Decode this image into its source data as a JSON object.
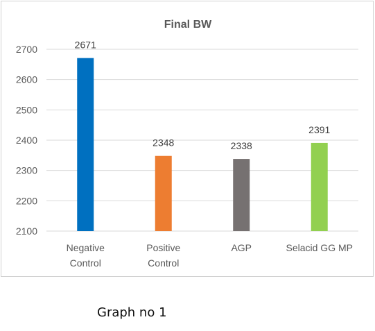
{
  "chart_data": {
    "type": "bar",
    "title": "Final BW",
    "categories": [
      [
        "Negative",
        "Control"
      ],
      [
        "Positive",
        "Control"
      ],
      [
        "AGP"
      ],
      [
        "Selacid GG MP"
      ]
    ],
    "values": [
      2671,
      2348,
      2338,
      2391
    ],
    "colors": [
      "#0070C0",
      "#ED7D31",
      "#767171",
      "#92D050"
    ],
    "ylim": [
      2100,
      2700
    ],
    "yticks": [
      2100,
      2200,
      2300,
      2400,
      2500,
      2600,
      2700
    ],
    "xlabel": "",
    "ylabel": "",
    "grid": true,
    "legend": "none"
  },
  "caption": "Graph no 1"
}
